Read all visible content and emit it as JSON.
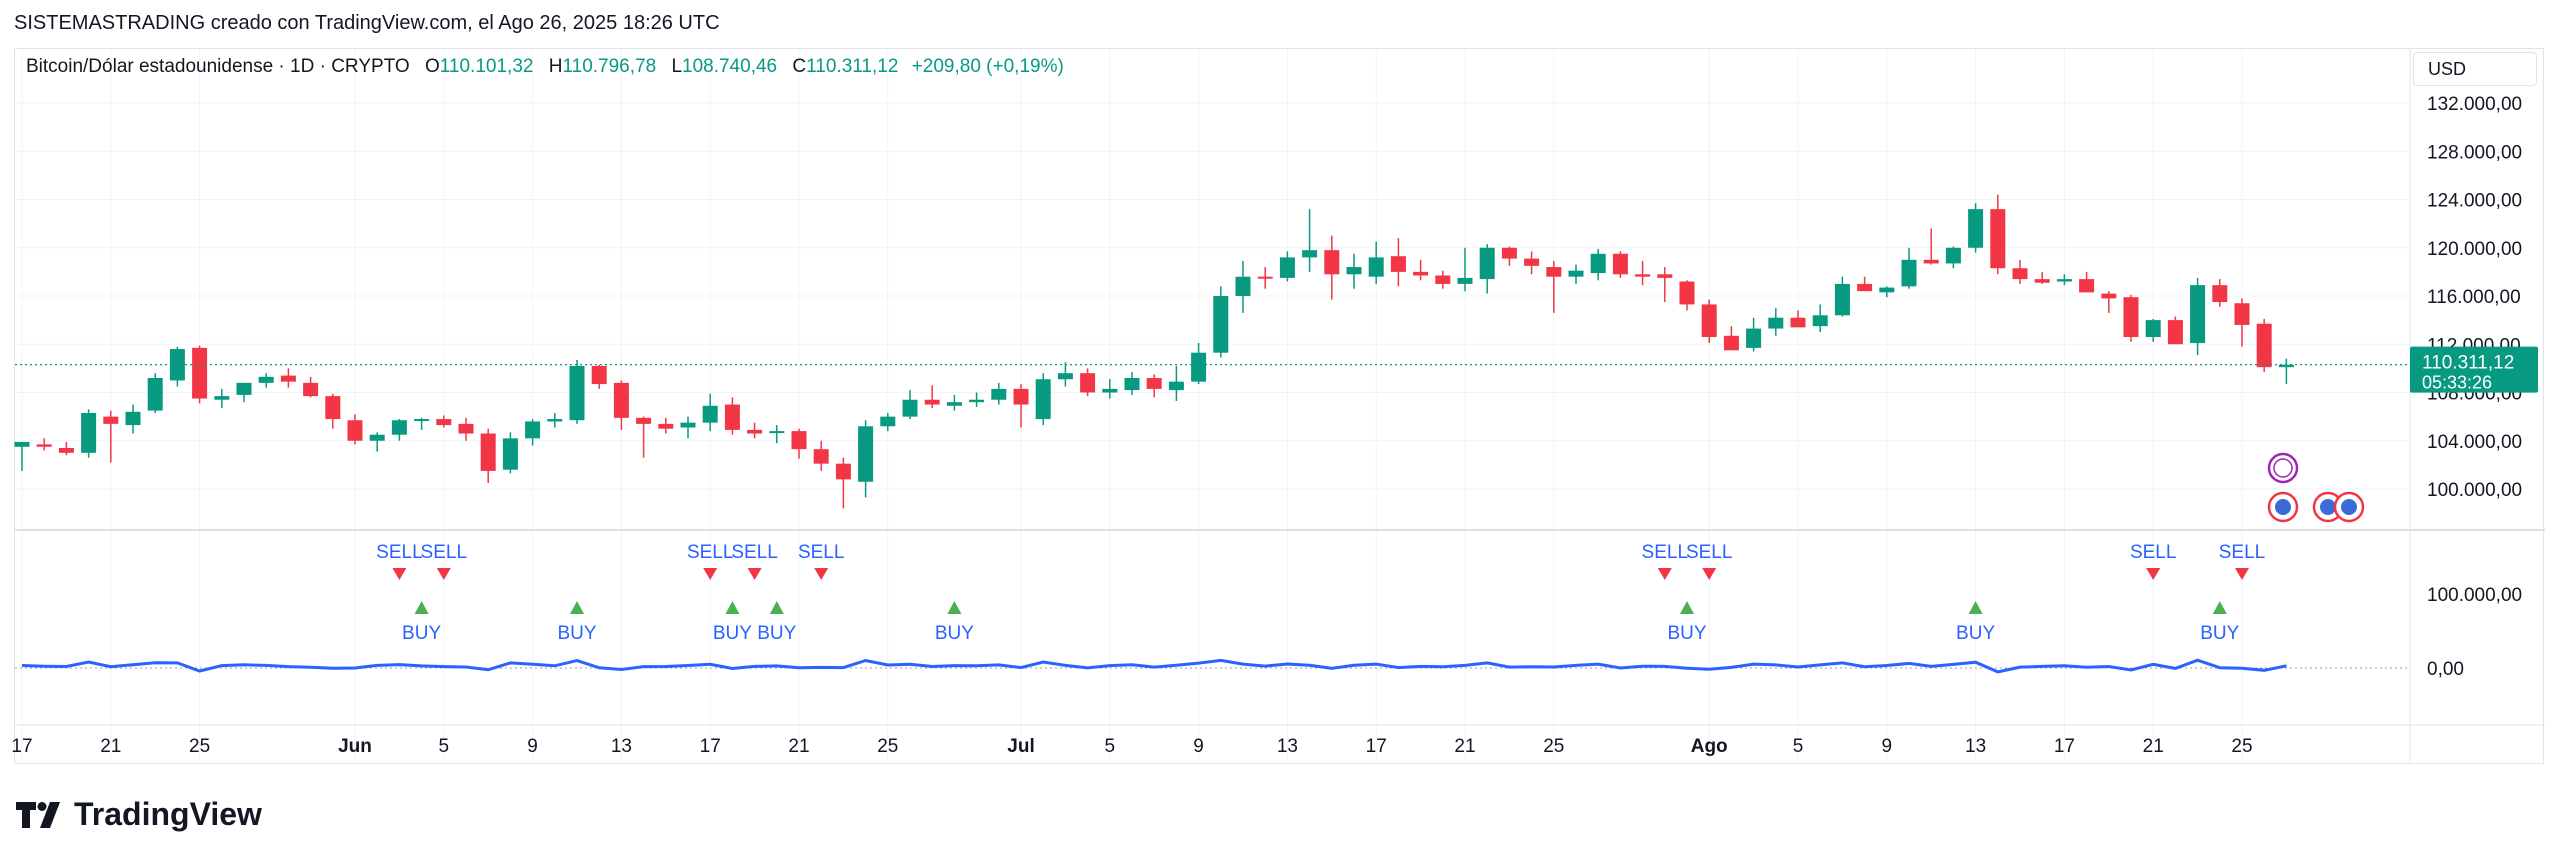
{
  "header": {
    "attribution": "SISTEMASTRADING creado con TradingView.com, el Ago 26, 2025 18:26 UTC"
  },
  "legend": {
    "symbol": "Bitcoin/Dólar estadounidense · 1D · CRYPTO",
    "o_label": "O",
    "o_value": "110.101,32",
    "h_label": "H",
    "h_value": "110.796,78",
    "l_label": "L",
    "l_value": "108.740,46",
    "c_label": "C",
    "c_value": "110.311,12",
    "change": "+209,80 (+0,19%)"
  },
  "currency_button": "USD",
  "logo_text": "TradingView",
  "colors": {
    "up": "#089981",
    "down": "#f23645",
    "signal_text": "#2962ff",
    "buy_marker": "#4caf50",
    "line": "#2962ff",
    "grid": "#f0f3fa"
  },
  "chart_data": {
    "type": "candlestick",
    "y_axis": {
      "ticks": [
        100000,
        104000,
        108000,
        112000,
        116000,
        120000,
        124000,
        128000,
        132000
      ],
      "tick_labels": [
        "100.000,00",
        "104.000,00",
        "108.000,00",
        "112.000,00",
        "116.000,00",
        "120.000,00",
        "124.000,00",
        "128.000,00",
        "132.000,00"
      ],
      "range": [
        97000,
        135000
      ]
    },
    "x_axis": {
      "labels": [
        "17",
        "21",
        "25",
        "Jun",
        "5",
        "9",
        "13",
        "17",
        "21",
        "25",
        "Jul",
        "5",
        "9",
        "13",
        "17",
        "21",
        "25",
        "Ago",
        "5",
        "9",
        "13",
        "17",
        "21",
        "25"
      ],
      "label_day_index": [
        0,
        4,
        8,
        15,
        19,
        23,
        27,
        31,
        35,
        39,
        45,
        49,
        53,
        57,
        61,
        65,
        69,
        76,
        80,
        84,
        88,
        92,
        96,
        100
      ]
    },
    "last_price": {
      "label": "110.311,12",
      "countdown": "05:33:26",
      "value": 110311.12
    },
    "candles": [
      [
        103500,
        103900,
        101500,
        103900
      ],
      [
        103700,
        104200,
        103200,
        103500
      ],
      [
        103400,
        103900,
        102800,
        103000
      ],
      [
        103000,
        106600,
        102600,
        106300
      ],
      [
        106000,
        106500,
        102200,
        105400
      ],
      [
        105300,
        107000,
        104600,
        106400
      ],
      [
        106500,
        109600,
        106300,
        109200
      ],
      [
        109000,
        111800,
        108500,
        111600
      ],
      [
        111700,
        111900,
        107100,
        107500
      ],
      [
        107400,
        108300,
        106700,
        107700
      ],
      [
        107800,
        108800,
        107200,
        108800
      ],
      [
        108800,
        109600,
        108400,
        109300
      ],
      [
        109400,
        110000,
        108400,
        108900
      ],
      [
        108800,
        109300,
        107600,
        107700
      ],
      [
        107700,
        107900,
        105000,
        105800
      ],
      [
        105700,
        106200,
        103700,
        104000
      ],
      [
        104000,
        104700,
        103100,
        104500
      ],
      [
        104500,
        105800,
        104000,
        105700
      ],
      [
        105700,
        105900,
        104900,
        105800
      ],
      [
        105800,
        106100,
        105100,
        105300
      ],
      [
        105400,
        105900,
        104000,
        104600
      ],
      [
        104600,
        105000,
        100500,
        101500
      ],
      [
        101600,
        104700,
        101300,
        104200
      ],
      [
        104200,
        105800,
        103600,
        105600
      ],
      [
        105600,
        106300,
        105100,
        105800
      ],
      [
        105700,
        110700,
        105400,
        110200
      ],
      [
        110200,
        110300,
        108300,
        108700
      ],
      [
        108800,
        109000,
        104900,
        105900
      ],
      [
        105900,
        106000,
        102600,
        105400
      ],
      [
        105400,
        105900,
        104600,
        105000
      ],
      [
        105100,
        106000,
        104200,
        105500
      ],
      [
        105500,
        107900,
        104800,
        106900
      ],
      [
        107000,
        107600,
        104500,
        104900
      ],
      [
        104900,
        105500,
        104200,
        104600
      ],
      [
        104700,
        105300,
        103800,
        104800
      ],
      [
        104800,
        105000,
        102500,
        103300
      ],
      [
        103300,
        104000,
        101500,
        102100
      ],
      [
        102100,
        102600,
        98400,
        100800
      ],
      [
        100600,
        105700,
        99300,
        105200
      ],
      [
        105200,
        106300,
        104800,
        106000
      ],
      [
        106000,
        108200,
        105800,
        107400
      ],
      [
        107400,
        108600,
        106700,
        107000
      ],
      [
        106900,
        107800,
        106500,
        107200
      ],
      [
        107200,
        108000,
        106800,
        107400
      ],
      [
        107400,
        108800,
        107000,
        108300
      ],
      [
        108300,
        108700,
        105100,
        107000
      ],
      [
        105800,
        109600,
        105300,
        109100
      ],
      [
        109100,
        110500,
        108500,
        109600
      ],
      [
        109600,
        110000,
        107700,
        108000
      ],
      [
        108000,
        109100,
        107500,
        108300
      ],
      [
        108200,
        109700,
        107800,
        109200
      ],
      [
        109200,
        109500,
        107600,
        108300
      ],
      [
        108200,
        110200,
        107300,
        108900
      ],
      [
        108900,
        112100,
        108700,
        111300
      ],
      [
        111300,
        116800,
        110900,
        116000
      ],
      [
        116000,
        118900,
        114600,
        117600
      ],
      [
        117600,
        118400,
        116600,
        117500
      ],
      [
        117500,
        119700,
        117200,
        119200
      ],
      [
        119200,
        123200,
        118000,
        119800
      ],
      [
        119800,
        121000,
        115700,
        117800
      ],
      [
        117800,
        119500,
        116600,
        118400
      ],
      [
        117600,
        120500,
        117000,
        119200
      ],
      [
        119300,
        120800,
        116800,
        118000
      ],
      [
        118000,
        119000,
        117300,
        117700
      ],
      [
        117700,
        118100,
        116600,
        117000
      ],
      [
        117000,
        120000,
        116400,
        117500
      ],
      [
        117400,
        120300,
        116200,
        120000
      ],
      [
        120000,
        120100,
        118500,
        119100
      ],
      [
        119100,
        119700,
        117800,
        118500
      ],
      [
        118400,
        118900,
        114600,
        117600
      ],
      [
        117600,
        118600,
        117000,
        118100
      ],
      [
        117900,
        119900,
        117300,
        119500
      ],
      [
        119500,
        119700,
        117500,
        117800
      ],
      [
        117800,
        118900,
        116900,
        117600
      ],
      [
        117800,
        118400,
        115500,
        117500
      ],
      [
        117200,
        117300,
        114800,
        115300
      ],
      [
        115300,
        115700,
        112100,
        112600
      ],
      [
        112700,
        113500,
        111800,
        111500
      ],
      [
        111700,
        114200,
        111400,
        113300
      ],
      [
        113300,
        115000,
        112700,
        114200
      ],
      [
        114200,
        114800,
        113500,
        113400
      ],
      [
        113500,
        115300,
        113000,
        114400
      ],
      [
        114400,
        117600,
        114300,
        117000
      ],
      [
        117000,
        117600,
        116700,
        116400
      ],
      [
        116300,
        116800,
        115900,
        116700
      ],
      [
        116800,
        120000,
        116600,
        119000
      ],
      [
        119000,
        121600,
        118600,
        118700
      ],
      [
        118700,
        120100,
        118300,
        120000
      ],
      [
        120000,
        123700,
        119600,
        123200
      ],
      [
        123200,
        124400,
        117800,
        118300
      ],
      [
        118300,
        119000,
        117000,
        117400
      ],
      [
        117400,
        118000,
        117000,
        117100
      ],
      [
        117200,
        117800,
        116900,
        117400
      ],
      [
        117400,
        118000,
        116500,
        116300
      ],
      [
        116200,
        116400,
        114600,
        115800
      ],
      [
        115900,
        116100,
        112200,
        112600
      ],
      [
        112600,
        114100,
        112200,
        114000
      ],
      [
        114000,
        114300,
        112100,
        112000
      ],
      [
        112100,
        117500,
        111100,
        116900
      ],
      [
        116900,
        117400,
        115100,
        115500
      ],
      [
        115400,
        115800,
        111800,
        113600
      ],
      [
        113700,
        114100,
        109700,
        110100
      ],
      [
        110100,
        110800,
        108700,
        110300
      ]
    ],
    "indicator": {
      "zero_label": "0,00",
      "level_label": "100.000,00"
    },
    "signals": [
      {
        "type": "SELL",
        "day": 17
      },
      {
        "type": "SELL",
        "day": 19
      },
      {
        "type": "BUY",
        "day": 18
      },
      {
        "type": "BUY",
        "day": 25
      },
      {
        "type": "SELL",
        "day": 31
      },
      {
        "type": "SELL",
        "day": 33
      },
      {
        "type": "SELL",
        "day": 36
      },
      {
        "type": "BUY",
        "day": 32
      },
      {
        "type": "BUY",
        "day": 34
      },
      {
        "type": "BUY",
        "day": 42
      },
      {
        "type": "SELL",
        "day": 74
      },
      {
        "type": "SELL",
        "day": 76
      },
      {
        "type": "BUY",
        "day": 75
      },
      {
        "type": "BUY",
        "day": 88
      },
      {
        "type": "SELL",
        "day": 96
      },
      {
        "type": "SELL",
        "day": 100
      },
      {
        "type": "BUY",
        "day": 99
      }
    ]
  }
}
